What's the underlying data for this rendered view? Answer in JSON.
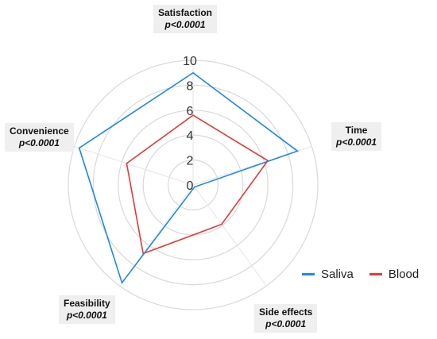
{
  "chart_data": {
    "type": "radar",
    "axes": [
      {
        "label": "Satisfaction",
        "stat": "p<0.0001"
      },
      {
        "label": "Time",
        "stat": "p<0.0001"
      },
      {
        "label": "Side effects",
        "stat": "p<0.0001"
      },
      {
        "label": "Feasibility",
        "stat": "p<0.0001"
      },
      {
        "label": "Convenience",
        "stat": "p<0.0001"
      }
    ],
    "radial_range": [
      0,
      10
    ],
    "radial_ticks": [
      "0",
      "2",
      "4",
      "6",
      "8",
      "10"
    ],
    "series": [
      {
        "name": "Saliva",
        "color": "#1e88e5",
        "values": [
          9.0,
          8.8,
          0.2,
          9.7,
          9.6
        ]
      },
      {
        "name": "Blood",
        "color": "#e53935",
        "values": [
          5.6,
          6.3,
          3.9,
          6.8,
          5.6
        ]
      }
    ],
    "legend_position": "right",
    "grid": true
  }
}
